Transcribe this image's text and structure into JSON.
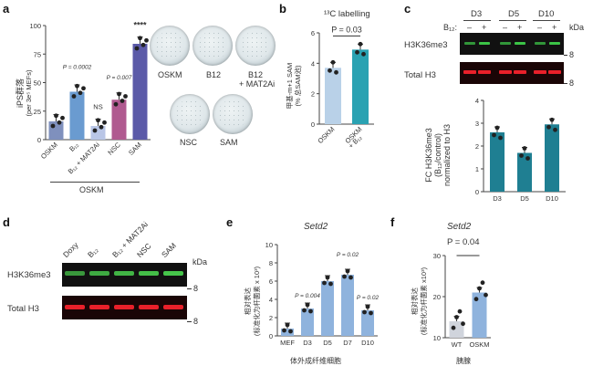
{
  "panels": {
    "a": {
      "letter": "a",
      "ylabel_line1": "iPS群落",
      "ylabel_line2": "(per 3e⁵ MEFs)",
      "categories": [
        "OSKM",
        "B₁₂",
        "B₁₂ + MAT2Ai",
        "NSC",
        "SAM"
      ],
      "group_label": "OSKM",
      "pvals": [
        "P = 0.0002",
        "NS",
        "P = 0.007",
        "****"
      ],
      "plates_row1": [
        "OSKM",
        "B12",
        "B12\n+ MAT2Ai"
      ],
      "plates_row1_labels": [
        "OSKM",
        "B12",
        "B12",
        "+ MAT2Ai"
      ],
      "plates_row2": [
        "NSC",
        "SAM"
      ],
      "yticks": [
        "0",
        "25",
        "50",
        "75",
        "100"
      ]
    },
    "b": {
      "letter": "b",
      "title": "¹³C labelling",
      "pval": "P = 0.03",
      "ylabel_line1": "甲基-m+1 SAM",
      "ylabel_line2": "(% 总SAM池)",
      "categories": [
        "OSKM",
        "OSKM",
        "+ B₁₂"
      ],
      "yticks": [
        "0",
        "2",
        "4",
        "6"
      ]
    },
    "c": {
      "letter": "c",
      "timepoints": [
        "D3",
        "D5",
        "D10"
      ],
      "b12_label": "B₁₂:",
      "signs": [
        "–",
        "+",
        "–",
        "+",
        "–",
        "+"
      ],
      "kda": "kDa",
      "marker": "8",
      "blot1": "H3K36me3",
      "blot2": "Total H3",
      "ylabel_line1": "FC H3K36me3",
      "ylabel_line2": "(B₁₂/control)",
      "ylabel_line3": "normalized to H3",
      "categories": [
        "D3",
        "D5",
        "D10"
      ],
      "yticks": [
        "0",
        "1",
        "2",
        "3",
        "4"
      ]
    },
    "d": {
      "letter": "d",
      "lanes": [
        "Doxy",
        "B₁₂",
        "B₁₂ + MAT2Ai",
        "NSC",
        "SAM"
      ],
      "kda": "kDa",
      "marker": "8",
      "blot1": "H3K36me3",
      "blot2": "Total H3"
    },
    "e": {
      "letter": "e",
      "title": "Setd2",
      "ylabel_line1": "相对表达",
      "ylabel_line2": "(标准化为杆菌素 x 10³)",
      "categories": [
        "MEF",
        "D3",
        "D5",
        "D7",
        "D10"
      ],
      "xlabel": "体外成纤维细胞",
      "pvals": [
        "P = 0.004",
        "P = 0.02",
        "P = 0.02"
      ],
      "yticks": [
        "0",
        "2",
        "4",
        "6",
        "8",
        "10"
      ]
    },
    "f": {
      "letter": "f",
      "title": "Setd2",
      "pval": "P = 0.04",
      "ylabel_line1": "相对表达",
      "ylabel_line2": "(标准化为杆菌素 x10³)",
      "categories": [
        "WT",
        "OSKM"
      ],
      "xlabel": "胰腺",
      "yticks": [
        "10",
        "20",
        "30"
      ]
    }
  },
  "chart_data": [
    {
      "type": "bar",
      "title": "",
      "categories": [
        "OSKM",
        "B₁₂",
        "B₁₂ + MAT2Ai",
        "NSC",
        "SAM"
      ],
      "values": [
        16,
        42,
        12,
        35,
        84
      ],
      "ylabel": "iPS群落 (per 3e⁵ MEFs)",
      "ylim": [
        0,
        100
      ],
      "colors": [
        "#7f90bd",
        "#6a9bd0",
        "#b9c6e6",
        "#b05a90",
        "#5b5aa8"
      ]
    },
    {
      "type": "bar",
      "title": "¹³C labelling",
      "categories": [
        "OSKM",
        "OSKM + B₁₂"
      ],
      "values": [
        3.7,
        4.9
      ],
      "ylabel": "甲基-m+1 SAM (% 总SAM池)",
      "ylim": [
        0,
        6
      ],
      "colors": [
        "#b9d1e8",
        "#2aa2b2"
      ]
    },
    {
      "type": "bar",
      "title": "",
      "categories": [
        "D3",
        "D5",
        "D10"
      ],
      "values": [
        2.6,
        1.7,
        2.95
      ],
      "ylabel": "FC H3K36me3 (B₁₂/control) normalized to H3",
      "ylim": [
        0,
        4
      ],
      "colors": [
        "#1f7f92",
        "#1f7f92",
        "#1f7f92"
      ]
    },
    {
      "type": "bar",
      "title": "Setd2",
      "categories": [
        "MEF",
        "D3",
        "D5",
        "D7",
        "D10"
      ],
      "values": [
        0.8,
        3.0,
        6.0,
        6.7,
        2.8
      ],
      "ylabel": "相对表达 (标准化为杆菌素 x 10³)",
      "ylim": [
        0,
        10
      ],
      "colors": [
        "#8fb3dd",
        "#8fb3dd",
        "#8fb3dd",
        "#8fb3dd",
        "#8fb3dd"
      ]
    },
    {
      "type": "bar",
      "title": "Setd2",
      "categories": [
        "WT",
        "OSKM"
      ],
      "values": [
        14,
        21
      ],
      "ylabel": "相对表达 (标准化为杆菌素 x10³)",
      "ylim": [
        10,
        30
      ],
      "colors": [
        "#d0d4dc",
        "#8fb3dd"
      ]
    }
  ]
}
